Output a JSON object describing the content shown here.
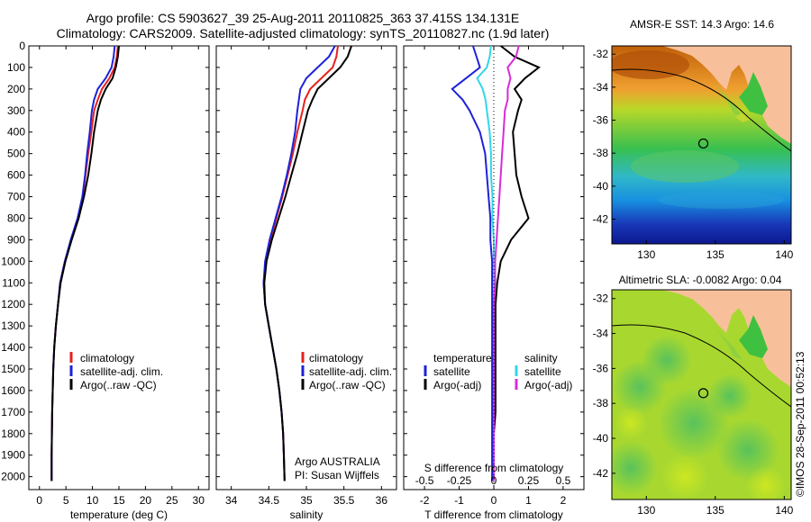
{
  "header": {
    "line1": "Argo profile: CS 5903627_39 25-Aug-2011 20110825_363 37.415S 134.131E",
    "line2": "Climatology: CARS2009. Satellite-adjusted climatology: synTS_20110827.nc (1.9d later)"
  },
  "colors": {
    "climatology": "#e8201e",
    "satellite": "#1e22d8",
    "argo": "#000000",
    "satellite_s": "#33d6e8",
    "argo_s": "#d82cd8",
    "land": "#f8c09a"
  },
  "depth_ticks": [
    "0",
    "100",
    "200",
    "300",
    "400",
    "500",
    "600",
    "700",
    "800",
    "900",
    "1000",
    "1100",
    "1200",
    "1300",
    "1400",
    "1500",
    "1600",
    "1700",
    "1800",
    "1900",
    "2000"
  ],
  "chart_data": [
    {
      "type": "line",
      "xlabel": "temperature (deg C)",
      "xticks": [
        "0",
        "5",
        "10",
        "15",
        "20",
        "25",
        "30"
      ],
      "xlim": [
        -2,
        32
      ],
      "ylim": [
        2060,
        0
      ],
      "legend": [
        "climatology",
        "satellite-adj. clim.",
        "Argo(..raw -QC)"
      ],
      "series": [
        {
          "name": "climatology",
          "x": [
            14.8,
            14.6,
            14.2,
            13.2,
            11.8,
            11,
            10.3,
            9.8,
            9.2,
            8.7,
            8.2,
            7.3,
            6,
            4.8,
            3.9,
            3.5,
            3.1,
            2.8,
            2.6,
            2.5,
            2.4,
            2.35,
            2.3,
            2.3
          ],
          "y": [
            0,
            50,
            100,
            150,
            200,
            250,
            300,
            400,
            500,
            600,
            700,
            800,
            900,
            1000,
            1100,
            1200,
            1300,
            1400,
            1500,
            1600,
            1700,
            1800,
            1900,
            2020
          ]
        },
        {
          "name": "satellite-adj. clim.",
          "x": [
            14.2,
            14,
            13.6,
            12.5,
            11,
            10.3,
            9.9,
            9.5,
            9,
            8.6,
            8.1,
            7.2,
            5.9,
            4.8,
            3.9,
            3.5,
            3.1,
            2.8,
            2.6,
            2.5,
            2.4,
            2.35,
            2.3,
            2.3
          ],
          "y": [
            0,
            50,
            100,
            150,
            200,
            250,
            300,
            400,
            500,
            600,
            700,
            800,
            900,
            1000,
            1100,
            1200,
            1300,
            1400,
            1500,
            1600,
            1700,
            1800,
            1900,
            2020
          ]
        },
        {
          "name": "Argo(..raw -QC)",
          "x": [
            15,
            14.8,
            14.4,
            13.8,
            12.5,
            11.6,
            11,
            10.3,
            9.8,
            9.2,
            8.4,
            7.4,
            6.1,
            4.9,
            4,
            3.5,
            3.1,
            2.8,
            2.6,
            2.5,
            2.4,
            2.35,
            2.3,
            2.3
          ],
          "y": [
            0,
            50,
            100,
            150,
            200,
            250,
            300,
            400,
            500,
            600,
            700,
            800,
            900,
            1000,
            1100,
            1200,
            1300,
            1400,
            1500,
            1600,
            1700,
            1800,
            1900,
            2020
          ]
        }
      ]
    },
    {
      "type": "line",
      "xlabel": "salinity",
      "xticks": [
        "34",
        "34.5",
        "35",
        "35.5",
        "36"
      ],
      "xlim": [
        33.8,
        36.2
      ],
      "ylim": [
        2060,
        0
      ],
      "legend": [
        "climatology",
        "satellite-adj. clim.",
        "Argo(..raw -QC)"
      ],
      "annotation": [
        "Argo AUSTRALIA",
        "PI: Susan Wijffels"
      ],
      "series": [
        {
          "name": "climatology",
          "x": [
            35.42,
            35.4,
            35.35,
            35.2,
            35.05,
            34.98,
            34.95,
            34.88,
            34.82,
            34.75,
            34.68,
            34.6,
            34.52,
            34.46,
            34.43,
            34.45,
            34.5,
            34.55,
            34.6,
            34.64,
            34.67,
            34.69,
            34.7,
            34.71
          ],
          "y": [
            0,
            50,
            100,
            150,
            200,
            250,
            300,
            400,
            500,
            600,
            700,
            800,
            900,
            1000,
            1100,
            1200,
            1300,
            1400,
            1500,
            1600,
            1700,
            1800,
            1900,
            2020
          ]
        },
        {
          "name": "satellite-adj. clim.",
          "x": [
            35.38,
            35.3,
            35.15,
            35.0,
            34.92,
            34.9,
            34.88,
            34.85,
            34.8,
            34.74,
            34.67,
            34.59,
            34.51,
            34.45,
            34.43,
            34.45,
            34.5,
            34.55,
            34.6,
            34.64,
            34.67,
            34.69,
            34.7,
            34.71
          ],
          "y": [
            0,
            50,
            100,
            150,
            200,
            250,
            300,
            400,
            500,
            600,
            700,
            800,
            900,
            1000,
            1100,
            1200,
            1300,
            1400,
            1500,
            1600,
            1700,
            1800,
            1900,
            2020
          ]
        },
        {
          "name": "Argo(..raw -QC)",
          "x": [
            35.6,
            35.55,
            35.45,
            35.3,
            35.15,
            35.08,
            35.02,
            34.95,
            34.88,
            34.8,
            34.72,
            34.63,
            34.54,
            34.47,
            34.44,
            34.45,
            34.5,
            34.55,
            34.6,
            34.64,
            34.67,
            34.69,
            34.7,
            34.71
          ],
          "y": [
            0,
            50,
            100,
            150,
            200,
            250,
            300,
            400,
            500,
            600,
            700,
            800,
            900,
            1000,
            1100,
            1200,
            1300,
            1400,
            1500,
            1600,
            1700,
            1800,
            1900,
            2020
          ]
        }
      ]
    },
    {
      "type": "line",
      "xlabel": "T difference from climatology",
      "xticks": [
        "-2",
        "-1",
        "0",
        "1",
        "2"
      ],
      "x2label": "S difference from climatology",
      "x2ticks": [
        "-0.5",
        "-0.25",
        "0",
        "0.25",
        "0.5"
      ],
      "xlim": [
        -2.6,
        2.6
      ],
      "ylim": [
        2060,
        0
      ],
      "legend_temperature": {
        "title": "temperature",
        "items": [
          "satellite",
          "Argo(-adj)"
        ]
      },
      "legend_salinity": {
        "title": "salinity",
        "items": [
          "satellite",
          "Argo(-adj)"
        ]
      },
      "series": [
        {
          "name": "temperature satellite",
          "x": [
            -0.6,
            -0.5,
            -0.4,
            -0.8,
            -1.2,
            -0.9,
            -0.7,
            -0.4,
            -0.25,
            -0.2,
            -0.15,
            -0.1,
            -0.1,
            -0.05,
            -0.05,
            -0.05,
            -0.05,
            -0.05,
            -0.05,
            -0.05,
            -0.05,
            -0.05,
            -0.05,
            -0.05
          ],
          "y": [
            0,
            50,
            100,
            150,
            200,
            250,
            300,
            400,
            500,
            600,
            700,
            800,
            900,
            1000,
            1100,
            1200,
            1300,
            1400,
            1500,
            1600,
            1700,
            1800,
            1900,
            2020
          ]
        },
        {
          "name": "temperature Argo(-adj)",
          "x": [
            0.2,
            0.6,
            1.3,
            0.9,
            0.6,
            0.8,
            0.7,
            0.55,
            0.6,
            0.65,
            0.8,
            1.0,
            0.5,
            0.2,
            0.1,
            0.05,
            0.05,
            0.05,
            0.05,
            0.05,
            0.05,
            0.0,
            0.0,
            0.0
          ],
          "y": [
            0,
            50,
            100,
            150,
            200,
            250,
            300,
            400,
            500,
            600,
            700,
            800,
            900,
            1000,
            1100,
            1200,
            1300,
            1400,
            1500,
            1600,
            1700,
            1800,
            1900,
            2020
          ]
        },
        {
          "name": "salinity satellite",
          "x": [
            -0.02,
            -0.03,
            -0.05,
            -0.12,
            -0.08,
            -0.06,
            -0.05,
            -0.03,
            -0.02,
            -0.02,
            -0.01,
            -0.01,
            0,
            0,
            0,
            0,
            0,
            0,
            0,
            0,
            0,
            0,
            0,
            0
          ],
          "y": [
            0,
            50,
            100,
            150,
            200,
            250,
            300,
            400,
            500,
            600,
            700,
            800,
            900,
            1000,
            1100,
            1200,
            1300,
            1400,
            1500,
            1600,
            1700,
            1800,
            1900,
            2020
          ]
        },
        {
          "name": "salinity Argo(-adj)",
          "x": [
            0.18,
            0.16,
            0.1,
            0.12,
            0.1,
            0.1,
            0.08,
            0.07,
            0.06,
            0.05,
            0.04,
            0.03,
            0.02,
            0.01,
            0.01,
            0,
            0,
            0,
            0,
            0,
            0,
            0,
            0,
            0
          ],
          "y": [
            0,
            50,
            100,
            150,
            200,
            250,
            300,
            400,
            500,
            600,
            700,
            800,
            900,
            1000,
            1100,
            1200,
            1300,
            1400,
            1500,
            1600,
            1700,
            1800,
            1900,
            2020
          ]
        }
      ]
    },
    {
      "type": "heatmap",
      "title": "AMSR-E SST: 14.3 Argo: 14.6",
      "xticks": [
        "130",
        "135",
        "140"
      ],
      "yticks": [
        "-32",
        "-34",
        "-36",
        "-38",
        "-40",
        "-42"
      ],
      "xlim": [
        127.5,
        140.5
      ],
      "ylim": [
        -43.5,
        -31.5
      ],
      "marker": {
        "lon": 134.131,
        "lat": -37.415
      }
    },
    {
      "type": "heatmap",
      "title": "Altimetric SLA: -0.0082 Argo: 0.04",
      "xticks": [
        "130",
        "135",
        "140"
      ],
      "yticks": [
        "-32",
        "-34",
        "-36",
        "-38",
        "-40",
        "-42"
      ],
      "xlim": [
        127.5,
        140.5
      ],
      "ylim": [
        -43.5,
        -31.5
      ],
      "marker": {
        "lon": 134.131,
        "lat": -37.415
      }
    }
  ],
  "credit": "©IMOS 28-Sep-2011 00:52:13"
}
